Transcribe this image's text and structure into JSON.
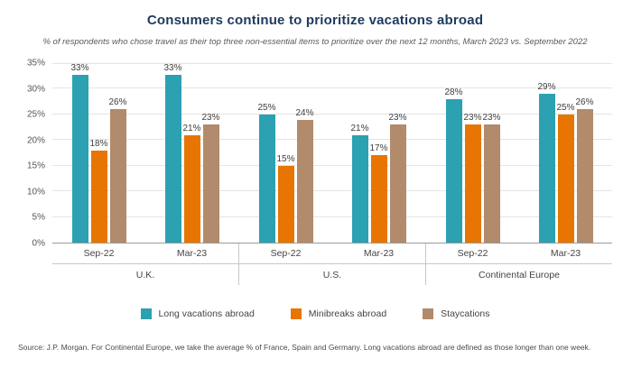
{
  "header": {
    "title": "Consumers continue to prioritize vacations abroad",
    "subtitle": "% of respondents who chose travel as their top three non-essential items to prioritize over the next 12 months, March 2023 vs. September 2022"
  },
  "footer": {
    "source": "Source: J.P. Morgan. For Continental Europe, we take the average % of France, Spain and Germany. Long vacations abroad are defined as those longer than one week."
  },
  "chart_data": {
    "type": "bar",
    "title": "Consumers continue to prioritize vacations abroad",
    "subtitle": "% of respondents who chose travel as their top three non-essential items to prioritize over the next 12 months, March 2023 vs. September 2022",
    "ylim": [
      0,
      35
    ],
    "yticks": [
      "0%",
      "5%",
      "10%",
      "15%",
      "20%",
      "25%",
      "30%",
      "35%"
    ],
    "grid": true,
    "legend_position": "bottom",
    "series": [
      {
        "name": "Long vacations abroad",
        "color": "#2ba1b2"
      },
      {
        "name": "Minibreaks abroad",
        "color": "#e87502"
      },
      {
        "name": "Staycations",
        "color": "#b18b6b"
      }
    ],
    "groups": [
      {
        "region": "U.K.",
        "periods": [
          {
            "label": "Sep-22",
            "values": [
              33,
              18,
              26
            ]
          },
          {
            "label": "Mar-23",
            "values": [
              33,
              21,
              23
            ]
          }
        ]
      },
      {
        "region": "U.S.",
        "periods": [
          {
            "label": "Sep-22",
            "values": [
              25,
              15,
              24
            ]
          },
          {
            "label": "Mar-23",
            "values": [
              21,
              17,
              23
            ]
          }
        ]
      },
      {
        "region": "Continental Europe",
        "periods": [
          {
            "label": "Sep-22",
            "values": [
              28,
              23,
              23
            ]
          },
          {
            "label": "Mar-23",
            "values": [
              29,
              25,
              26
            ]
          }
        ]
      }
    ],
    "source": "Source: J.P. Morgan. For Continental Europe, we take the average % of France, Spain and Germany. Long vacations abroad are defined as those longer than one week."
  }
}
